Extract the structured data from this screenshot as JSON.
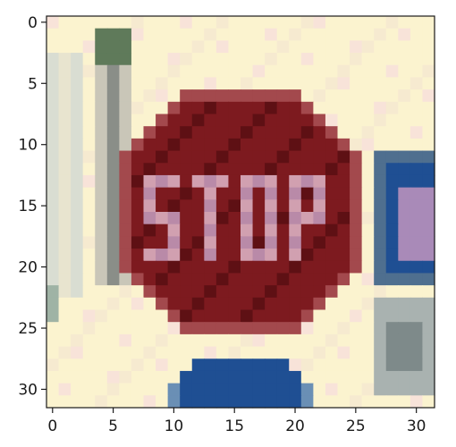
{
  "figure": {
    "image_description_label": "Pixelated 32x32 photo of a red STOP sign",
    "sign_text": "STOP",
    "x_axis": {
      "ticks": [
        "0",
        "5",
        "10",
        "15",
        "20",
        "25",
        "30"
      ],
      "range": [
        -0.5,
        31.5
      ]
    },
    "y_axis": {
      "ticks": [
        "0",
        "5",
        "10",
        "15",
        "20",
        "25",
        "30"
      ],
      "range": [
        -0.5,
        31.5
      ],
      "inverted": true
    },
    "grid": false,
    "colors": {
      "background_cream": "#fbf3cf",
      "sign_red": "#7d1a1f",
      "sign_dark_red": "#5e1014",
      "letter_lavender": "#b98aa8",
      "blue_sign": "#1f4f93",
      "pole_grey": "#b9b6a8"
    }
  }
}
